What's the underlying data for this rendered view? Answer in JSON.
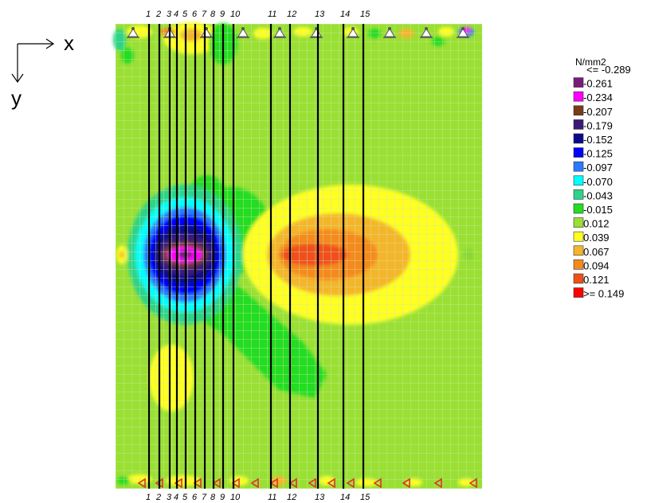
{
  "axes": {
    "x_label": "x",
    "y_label": "y"
  },
  "legend": {
    "unit": "N/mm2",
    "items": [
      {
        "label": "<= -0.289",
        "color": null
      },
      {
        "label": "-0.261",
        "color": "#7a1a7a"
      },
      {
        "label": "-0.234",
        "color": "#ff00ff"
      },
      {
        "label": "-0.207",
        "color": "#7b3a1a"
      },
      {
        "label": "-0.179",
        "color": "#3a1a7a"
      },
      {
        "label": "-0.152",
        "color": "#0a0a8c"
      },
      {
        "label": "-0.125",
        "color": "#0000ff"
      },
      {
        "label": "-0.097",
        "color": "#2a7aff"
      },
      {
        "label": "-0.070",
        "color": "#00ffff"
      },
      {
        "label": "-0.043",
        "color": "#2ad48a"
      },
      {
        "label": "-0.015",
        "color": "#22dd22"
      },
      {
        "label": "0.012",
        "color": "#99e033"
      },
      {
        "label": "0.039",
        "color": "#ffff22"
      },
      {
        "label": "0.067",
        "color": "#f5b52a"
      },
      {
        "label": "0.094",
        "color": "#f58a1a"
      },
      {
        "label": "0.121",
        "color": "#f0501a"
      },
      {
        "label": ">= 0.149",
        "color": "#ff0000"
      }
    ]
  },
  "sections": {
    "labels": [
      "1",
      "2",
      "3",
      "4",
      "5",
      "6",
      "7",
      "8",
      "9",
      "10",
      "11",
      "12",
      "13",
      "14",
      "15"
    ]
  },
  "colors": {
    "background_field": "#99e033",
    "grid": "#c8e89a",
    "section_line": "#000000",
    "support": "#808080"
  }
}
